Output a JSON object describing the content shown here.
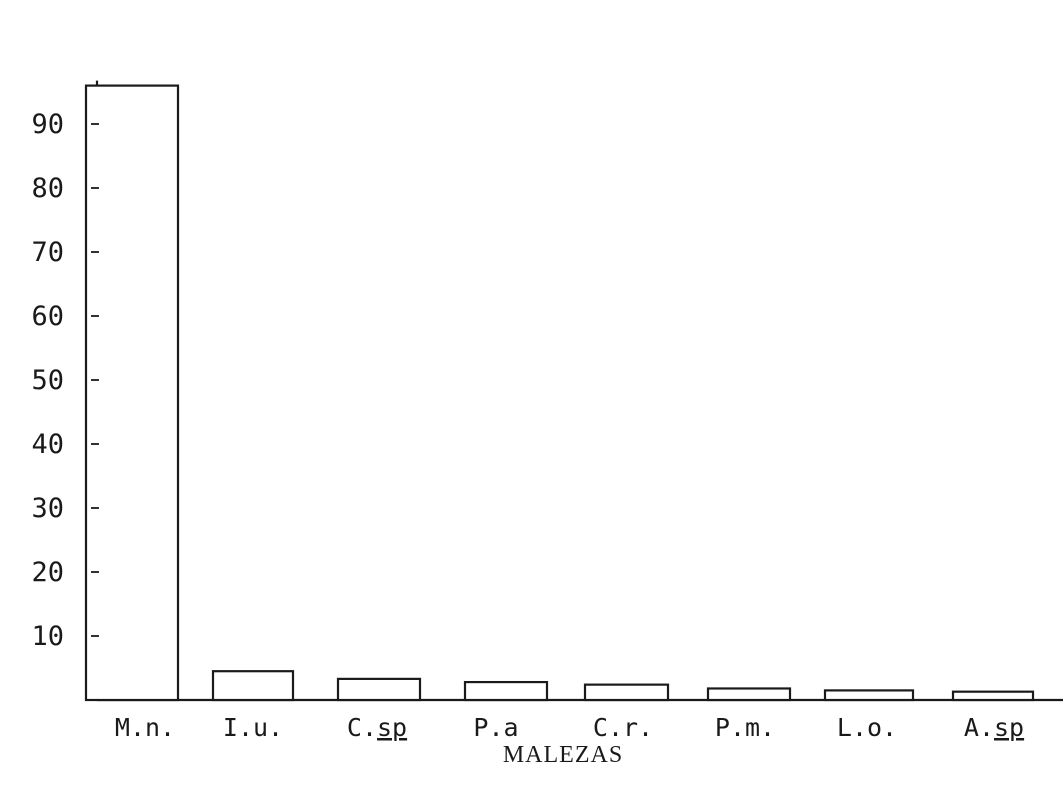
{
  "chart_data": {
    "type": "bar",
    "categories": [
      "M.n.",
      "I.u.",
      "C.sp",
      "P.a",
      "C.r.",
      "P.m.",
      "L.o.",
      "A.sp"
    ],
    "underlined_suffix": {
      "C.sp": "sp",
      "A.sp": "sp"
    },
    "values": [
      96.0,
      4.5,
      3.3,
      2.8,
      2.4,
      1.8,
      1.5,
      1.3
    ],
    "title": "",
    "xlabel": "MALEZAS",
    "ylabel": "",
    "ylim": [
      0,
      96
    ],
    "yticks": [
      10,
      20,
      30,
      40,
      50,
      60,
      70,
      80,
      90
    ],
    "ytick_labels": [
      "10",
      "20",
      "30",
      "40",
      "50",
      "60",
      "70",
      "80",
      "90"
    ],
    "grid": false,
    "legend": "none",
    "colors": {
      "bar_fill": "#ffffff",
      "bar_stroke": "#1a1a1a",
      "axis": "#1a1a1a",
      "background": "#ffffff"
    }
  }
}
